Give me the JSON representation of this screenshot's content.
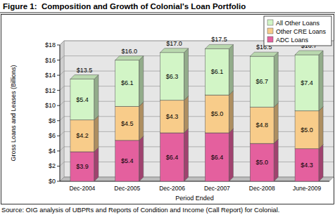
{
  "chart_data": {
    "type": "bar",
    "title": "Figure 1:  Composition and Growth of Colonial's Loan Portfolio",
    "y_label": "Gross Loans and Leases (Billions)",
    "x_label": "Period Ended",
    "source": "Source: OIG analysis of UBPRs and Reports of Condition and Income (Call Report) for Colonial.",
    "categories": [
      "Dec-2004",
      "Dec-2005",
      "Dec-2006",
      "Dec-2007",
      "Dec-2008",
      "June-2009"
    ],
    "series": [
      {
        "name": "ADC Loans",
        "color": "#e4609e",
        "values": [
          3.9,
          5.4,
          6.4,
          6.4,
          5.0,
          4.3
        ],
        "value_labels": [
          "$3.9",
          "$5.4",
          "$6.4",
          "$6.4",
          "$5.0",
          "$4.3"
        ]
      },
      {
        "name": "Other CRE Loans",
        "color": "#f8cc8a",
        "values": [
          4.2,
          4.5,
          4.3,
          5.0,
          4.8,
          5.0
        ],
        "value_labels": [
          "$4.2",
          "$4.5",
          "$4.3",
          "$5.0",
          "$4.8",
          "$5.0"
        ]
      },
      {
        "name": "All Other Loans",
        "color": "#d2f5c6",
        "values": [
          5.4,
          6.1,
          6.3,
          6.1,
          6.7,
          7.4
        ],
        "value_labels": [
          "$5.4",
          "$6.1",
          "$6.3",
          "$6.1",
          "$6.7",
          "$7.4"
        ]
      }
    ],
    "totals": [
      13.5,
      16.0,
      17.0,
      17.5,
      16.5,
      16.7
    ],
    "total_labels": [
      "$13.5",
      "$16.0",
      "$17.0",
      "$17.5",
      "$16.5",
      "$16.7"
    ],
    "ylim": [
      0,
      18
    ],
    "yticks": [
      {
        "value": 0,
        "label": "$0"
      },
      {
        "value": 2,
        "label": "$2"
      },
      {
        "value": 4,
        "label": "$4"
      },
      {
        "value": 6,
        "label": "$6"
      },
      {
        "value": 8,
        "label": "$8"
      },
      {
        "value": 10,
        "label": "$10"
      },
      {
        "value": 12,
        "label": "$12"
      },
      {
        "value": 14,
        "label": "$14"
      },
      {
        "value": 16,
        "label": "$16"
      },
      {
        "value": 18,
        "label": "$18"
      }
    ],
    "stacked": true,
    "data_labels": true,
    "grid": true,
    "legend": "top-right"
  }
}
